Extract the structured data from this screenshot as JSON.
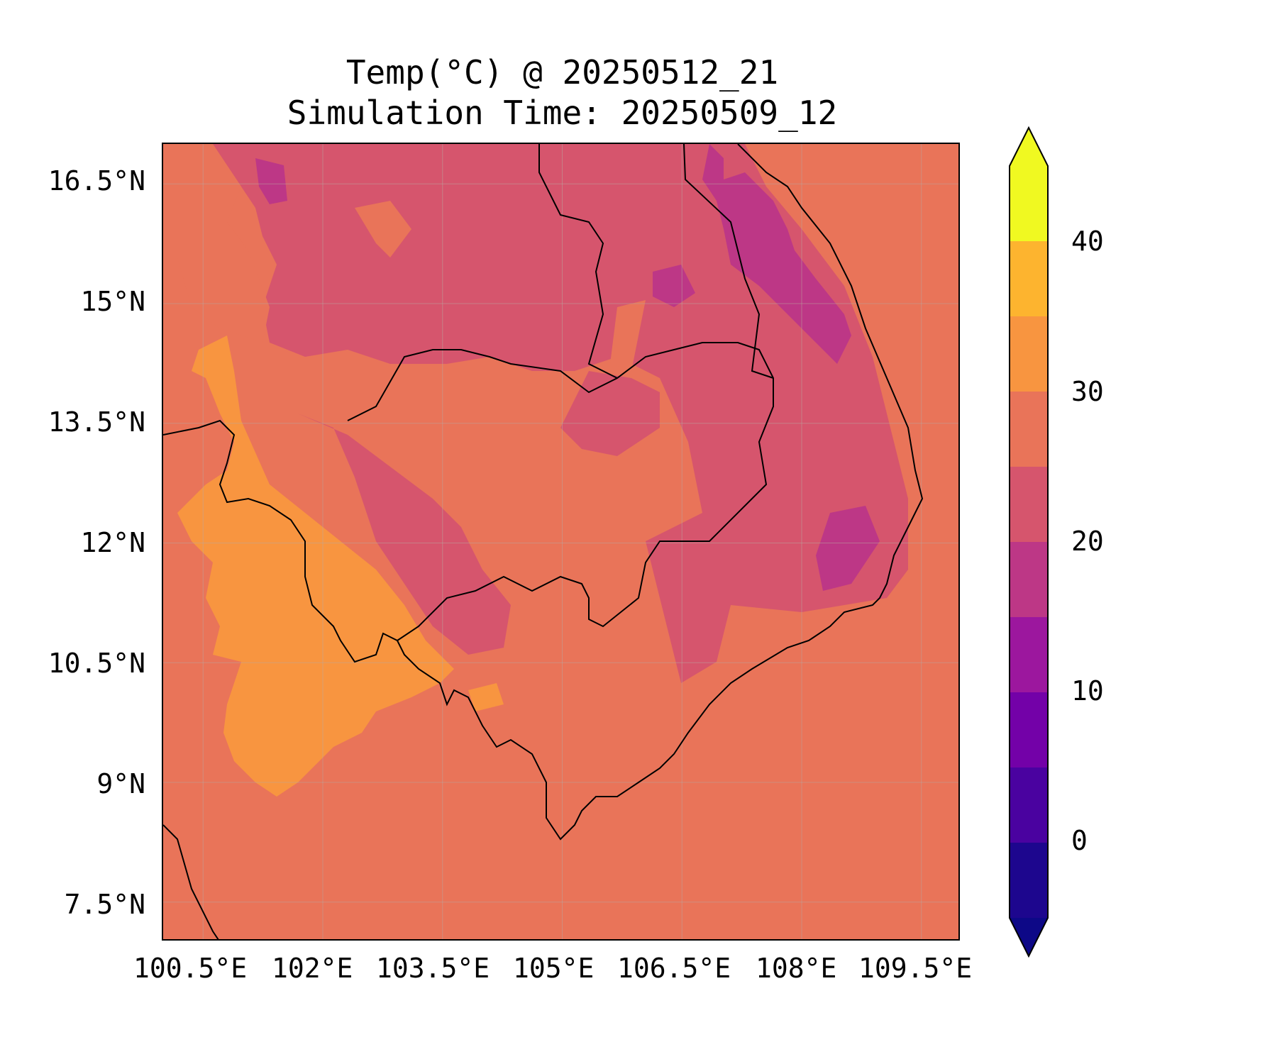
{
  "title": {
    "line1": "Temp(°C) @ 20250512_21",
    "line2": "Simulation Time: 20250509_12"
  },
  "map": {
    "type": "filled-contour-map",
    "variable": "Temp(°C)",
    "region": "Cambodia / southern Vietnam / Gulf of Thailand",
    "lon_range": [
      100.0,
      110.0
    ],
    "lat_range": [
      7.0,
      17.0
    ],
    "background_temp_band": "25-30",
    "grid": true,
    "coastlines": true,
    "lat_ticks": [
      "16.5°N",
      "15°N",
      "13.5°N",
      "12°N",
      "10.5°N",
      "9°N",
      "7.5°N"
    ],
    "lon_ticks": [
      "100.5°E",
      "102°E",
      "103.5°E",
      "105°E",
      "106.5°E",
      "108°E",
      "109.5°E"
    ]
  },
  "colorbar": {
    "levels": [
      -5,
      0,
      5,
      10,
      15,
      20,
      25,
      30,
      35,
      40,
      45
    ],
    "colors": [
      "#1d068e",
      "#4a02a0",
      "#7301a8",
      "#9c179e",
      "#bd3786",
      "#d6556d",
      "#e97459",
      "#f89540",
      "#fdb42f",
      "#f0f921"
    ],
    "under_color": "#0d0887",
    "over_color": "#f0f921",
    "extend": "both",
    "tick_labels": [
      "0",
      "10",
      "20",
      "30",
      "40"
    ]
  },
  "colors": {
    "band_20_25": "#d6556d",
    "band_25_30": "#e97459",
    "band_30_35": "#f89540",
    "band_15_20": "#bd3786",
    "coastline": "#000000"
  }
}
